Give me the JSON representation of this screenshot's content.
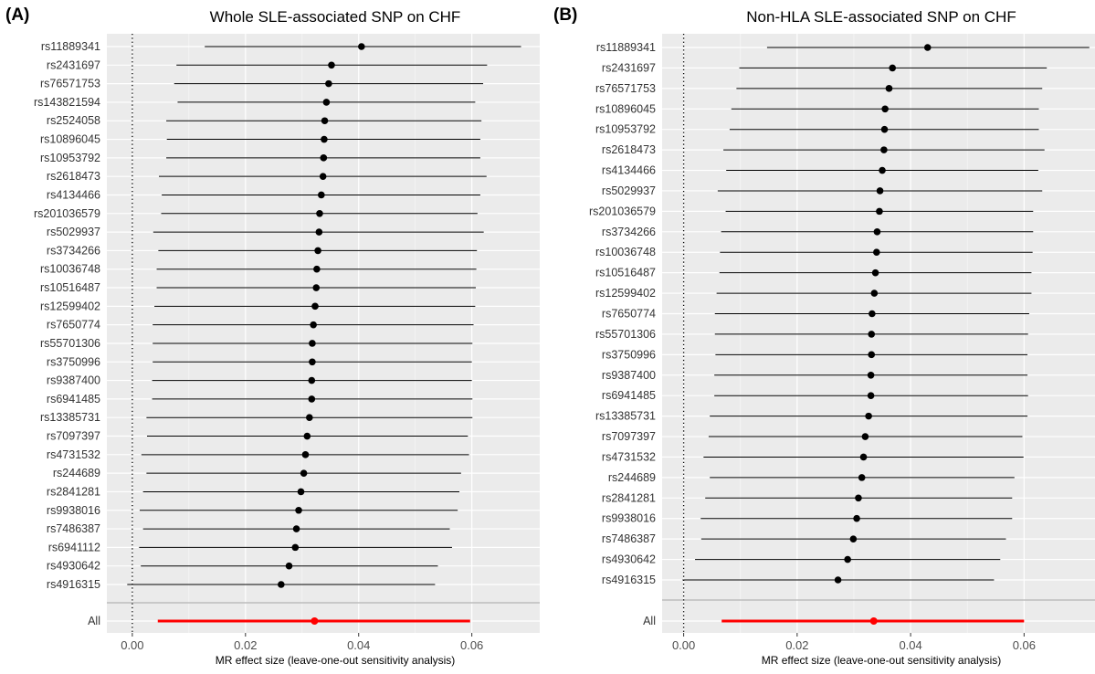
{
  "chart_data": [
    {
      "type": "scatter",
      "panel": "(A)",
      "title": "Whole SLE-associated SNP on CHF",
      "xlabel": "MR effect size (leave-one-out sensitivity analysis)",
      "xlim": [
        -0.0045,
        0.072
      ],
      "xticks": [
        0.0,
        0.02,
        0.04,
        0.06
      ],
      "xtick_labels": [
        "0.00",
        "0.02",
        "0.04",
        "0.06"
      ],
      "grid": true,
      "reference_line_x": 0,
      "snps": [
        {
          "label": "rs11889341",
          "est": 0.0405,
          "lo": 0.0128,
          "hi": 0.0687
        },
        {
          "label": "rs2431697",
          "est": 0.0352,
          "lo": 0.0078,
          "hi": 0.0627
        },
        {
          "label": "rs76571753",
          "est": 0.0347,
          "lo": 0.0074,
          "hi": 0.062
        },
        {
          "label": "rs143821594",
          "est": 0.0343,
          "lo": 0.008,
          "hi": 0.0606
        },
        {
          "label": "rs2524058",
          "est": 0.034,
          "lo": 0.006,
          "hi": 0.0617
        },
        {
          "label": "rs10896045",
          "est": 0.0339,
          "lo": 0.0061,
          "hi": 0.0615
        },
        {
          "label": "rs10953792",
          "est": 0.0338,
          "lo": 0.006,
          "hi": 0.0615
        },
        {
          "label": "rs2618473",
          "est": 0.0337,
          "lo": 0.0047,
          "hi": 0.0626
        },
        {
          "label": "rs4134466",
          "est": 0.0334,
          "lo": 0.0052,
          "hi": 0.0615
        },
        {
          "label": "rs201036579",
          "est": 0.0331,
          "lo": 0.0051,
          "hi": 0.061
        },
        {
          "label": "rs5029937",
          "est": 0.033,
          "lo": 0.0037,
          "hi": 0.0621
        },
        {
          "label": "rs3734266",
          "est": 0.0328,
          "lo": 0.0046,
          "hi": 0.0609
        },
        {
          "label": "rs10036748",
          "est": 0.0326,
          "lo": 0.0043,
          "hi": 0.0608
        },
        {
          "label": "rs10516487",
          "est": 0.0325,
          "lo": 0.0043,
          "hi": 0.0607
        },
        {
          "label": "rs12599402",
          "est": 0.0323,
          "lo": 0.0039,
          "hi": 0.0606
        },
        {
          "label": "rs7650774",
          "est": 0.032,
          "lo": 0.0036,
          "hi": 0.0603
        },
        {
          "label": "rs55701306",
          "est": 0.0318,
          "lo": 0.0036,
          "hi": 0.0601
        },
        {
          "label": "rs3750996",
          "est": 0.0318,
          "lo": 0.0036,
          "hi": 0.06
        },
        {
          "label": "rs9387400",
          "est": 0.0317,
          "lo": 0.0035,
          "hi": 0.06
        },
        {
          "label": "rs6941485",
          "est": 0.0317,
          "lo": 0.0035,
          "hi": 0.0601
        },
        {
          "label": "rs13385731",
          "est": 0.0313,
          "lo": 0.0025,
          "hi": 0.0601
        },
        {
          "label": "rs7097397",
          "est": 0.0309,
          "lo": 0.0026,
          "hi": 0.0593
        },
        {
          "label": "rs4731532",
          "est": 0.0306,
          "lo": 0.0016,
          "hi": 0.0595
        },
        {
          "label": "rs244689",
          "est": 0.0303,
          "lo": 0.0025,
          "hi": 0.0581
        },
        {
          "label": "rs2841281",
          "est": 0.0298,
          "lo": 0.0019,
          "hi": 0.0578
        },
        {
          "label": "rs9938016",
          "est": 0.0294,
          "lo": 0.0013,
          "hi": 0.0575
        },
        {
          "label": "rs7486387",
          "est": 0.029,
          "lo": 0.0019,
          "hi": 0.0561
        },
        {
          "label": "rs6941112",
          "est": 0.0288,
          "lo": 0.0012,
          "hi": 0.0565
        },
        {
          "label": "rs4930642",
          "est": 0.0277,
          "lo": 0.0015,
          "hi": 0.054
        },
        {
          "label": "rs4916315",
          "est": 0.0263,
          "lo": -0.0009,
          "hi": 0.0535
        }
      ],
      "overall": {
        "label": "All",
        "est": 0.0322,
        "lo": 0.0045,
        "hi": 0.0597
      },
      "colors": {
        "snp": "#000000",
        "overall": "#ff0000",
        "panel_bg": "#ebebeb",
        "grid": "#ffffff"
      }
    },
    {
      "type": "scatter",
      "panel": "(B)",
      "title": "Non-HLA SLE-associated SNP on CHF",
      "xlabel": "MR effect size (leave-one-out sensitivity analysis)",
      "xlim": [
        -0.0038,
        0.0725
      ],
      "xticks": [
        0.0,
        0.02,
        0.04,
        0.06
      ],
      "xtick_labels": [
        "0.00",
        "0.02",
        "0.04",
        "0.06"
      ],
      "grid": true,
      "reference_line_x": 0,
      "snps": [
        {
          "label": "rs11889341",
          "est": 0.043,
          "lo": 0.0147,
          "hi": 0.0715
        },
        {
          "label": "rs2431697",
          "est": 0.0368,
          "lo": 0.0098,
          "hi": 0.064
        },
        {
          "label": "rs76571753",
          "est": 0.0362,
          "lo": 0.0093,
          "hi": 0.0632
        },
        {
          "label": "rs10896045",
          "est": 0.0355,
          "lo": 0.0084,
          "hi": 0.0626
        },
        {
          "label": "rs10953792",
          "est": 0.0354,
          "lo": 0.0081,
          "hi": 0.0626
        },
        {
          "label": "rs2618473",
          "est": 0.0353,
          "lo": 0.007,
          "hi": 0.0636
        },
        {
          "label": "rs4134466",
          "est": 0.035,
          "lo": 0.0075,
          "hi": 0.0625
        },
        {
          "label": "rs5029937",
          "est": 0.0346,
          "lo": 0.006,
          "hi": 0.0632
        },
        {
          "label": "rs201036579",
          "est": 0.0345,
          "lo": 0.0074,
          "hi": 0.0616
        },
        {
          "label": "rs3734266",
          "est": 0.0341,
          "lo": 0.0066,
          "hi": 0.0616
        },
        {
          "label": "rs10036748",
          "est": 0.034,
          "lo": 0.0064,
          "hi": 0.0615
        },
        {
          "label": "rs10516487",
          "est": 0.0338,
          "lo": 0.0063,
          "hi": 0.0613
        },
        {
          "label": "rs12599402",
          "est": 0.0336,
          "lo": 0.0058,
          "hi": 0.0613
        },
        {
          "label": "rs7650774",
          "est": 0.0332,
          "lo": 0.0055,
          "hi": 0.0609
        },
        {
          "label": "rs55701306",
          "est": 0.0331,
          "lo": 0.0055,
          "hi": 0.0607
        },
        {
          "label": "rs3750996",
          "est": 0.0331,
          "lo": 0.0056,
          "hi": 0.0606
        },
        {
          "label": "rs9387400",
          "est": 0.033,
          "lo": 0.0054,
          "hi": 0.0606
        },
        {
          "label": "rs6941485",
          "est": 0.033,
          "lo": 0.0054,
          "hi": 0.0607
        },
        {
          "label": "rs13385731",
          "est": 0.0326,
          "lo": 0.0046,
          "hi": 0.0606
        },
        {
          "label": "rs7097397",
          "est": 0.032,
          "lo": 0.0044,
          "hi": 0.0597
        },
        {
          "label": "rs4731532",
          "est": 0.0317,
          "lo": 0.0035,
          "hi": 0.0599
        },
        {
          "label": "rs244689",
          "est": 0.0314,
          "lo": 0.0046,
          "hi": 0.0583
        },
        {
          "label": "rs2841281",
          "est": 0.0308,
          "lo": 0.0038,
          "hi": 0.0579
        },
        {
          "label": "rs9938016",
          "est": 0.0305,
          "lo": 0.003,
          "hi": 0.0579
        },
        {
          "label": "rs7486387",
          "est": 0.0299,
          "lo": 0.0031,
          "hi": 0.0568
        },
        {
          "label": "rs4930642",
          "est": 0.0289,
          "lo": 0.002,
          "hi": 0.0558
        },
        {
          "label": "rs4916315",
          "est": 0.0272,
          "lo": -0.0002,
          "hi": 0.0547
        }
      ],
      "overall": {
        "label": "All",
        "est": 0.0335,
        "lo": 0.0067,
        "hi": 0.06
      },
      "colors": {
        "snp": "#000000",
        "overall": "#ff0000",
        "panel_bg": "#ebebeb",
        "grid": "#ffffff"
      }
    }
  ]
}
